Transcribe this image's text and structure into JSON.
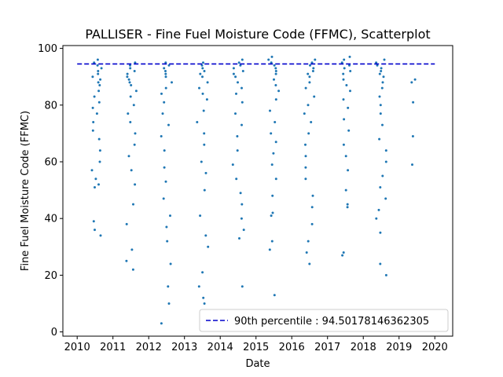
{
  "chart_data": {
    "type": "scatter",
    "title": "PALLISER - Fine Fuel Moisture Code (FFMC), Scatterplot",
    "xlabel": "Date",
    "ylabel": "Fine Fuel Moisture Code (FFMC)",
    "xlim": [
      2009.6,
      2020.5
    ],
    "ylim": [
      -1.5,
      101
    ],
    "xticks": [
      "2010",
      "2011",
      "2012",
      "2013",
      "2014",
      "2015",
      "2016",
      "2017",
      "2018",
      "2019",
      "2020"
    ],
    "yticks": [
      "0",
      "20",
      "40",
      "60",
      "80",
      "100"
    ],
    "grid": false,
    "legend_position": "lower right",
    "point_color": "#1f77b4",
    "reference_line": {
      "label": "90th percentile : 94.50178146362305",
      "value": 94.50178146362305,
      "x_range": [
        2010,
        2020
      ],
      "color": "#0000cc",
      "style": "dashed"
    },
    "seasons": [
      {
        "start": 2010.38,
        "end": 2010.68,
        "values": [
          96,
          95,
          94,
          93,
          92,
          91,
          90,
          89,
          88,
          87,
          85,
          83,
          81,
          79,
          77,
          74,
          71,
          68,
          64,
          60,
          57,
          54,
          52,
          51,
          39,
          36,
          34
        ]
      },
      {
        "start": 2011.35,
        "end": 2011.66,
        "values": [
          95,
          94,
          93,
          92,
          91,
          90,
          89,
          88,
          87,
          85,
          83,
          80,
          77,
          74,
          70,
          66,
          62,
          57,
          52,
          45,
          38,
          29,
          25,
          22
        ]
      },
      {
        "start": 2012.35,
        "end": 2012.66,
        "values": [
          95,
          94,
          93,
          92,
          91,
          90,
          88,
          86,
          84,
          81,
          77,
          73,
          69,
          64,
          58,
          53,
          47,
          41,
          37,
          32,
          24,
          16,
          10,
          3
        ]
      },
      {
        "start": 2013.35,
        "end": 2013.66,
        "values": [
          95,
          94,
          93,
          92,
          91,
          90,
          88,
          86,
          84,
          82,
          78,
          74,
          70,
          66,
          60,
          56,
          50,
          41,
          34,
          30,
          21,
          16,
          12,
          10
        ]
      },
      {
        "start": 2014.35,
        "end": 2014.66,
        "values": [
          96,
          95,
          94,
          93,
          92,
          91,
          90,
          88,
          86,
          84,
          81,
          77,
          73,
          69,
          64,
          59,
          54,
          49,
          45,
          40,
          36,
          33,
          16
        ]
      },
      {
        "start": 2015.35,
        "end": 2015.66,
        "values": [
          97,
          96,
          95,
          94,
          93,
          92,
          91,
          89,
          87,
          85,
          82,
          78,
          74,
          70,
          67,
          63,
          59,
          54,
          48,
          42,
          41,
          32,
          29,
          13
        ]
      },
      {
        "start": 2016.35,
        "end": 2016.66,
        "values": [
          96,
          95,
          94,
          93,
          92,
          91,
          90,
          88,
          86,
          83,
          80,
          77,
          74,
          70,
          66,
          62,
          58,
          54,
          48,
          44,
          38,
          32,
          28,
          24
        ]
      },
      {
        "start": 2017.38,
        "end": 2017.64,
        "values": [
          97,
          96,
          95,
          94,
          93,
          92,
          91,
          89,
          87,
          85,
          82,
          79,
          75,
          71,
          66,
          62,
          57,
          50,
          45,
          44,
          28,
          27
        ]
      },
      {
        "start": 2018.35,
        "end": 2018.66,
        "values": [
          96,
          95,
          94,
          93,
          92,
          91,
          90,
          88,
          86,
          83,
          80,
          77,
          73,
          68,
          64,
          60,
          55,
          51,
          47,
          43,
          40,
          35,
          24,
          20
        ]
      },
      {
        "start": 2019.35,
        "end": 2019.45,
        "values": [
          89,
          88,
          81,
          69,
          59
        ]
      }
    ]
  }
}
